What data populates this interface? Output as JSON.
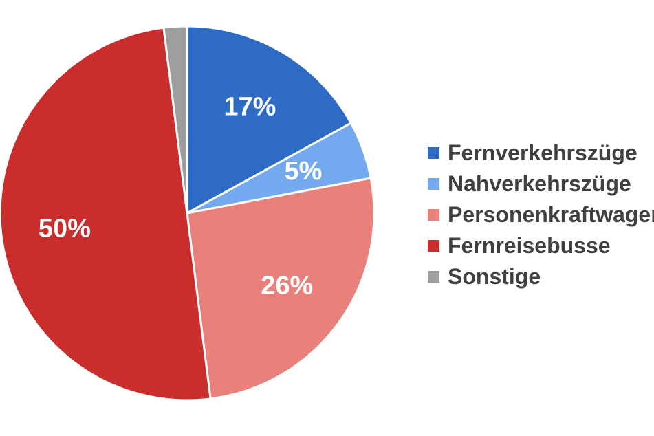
{
  "chart_data": {
    "type": "pie",
    "categories": [
      "Fernverkehrszüge",
      "Nahverkehrszüge",
      "Personenkraftwagen",
      "Fernreisebusse",
      "Sonstige"
    ],
    "values": [
      17,
      5,
      26,
      50,
      2
    ],
    "labels": [
      "17%",
      "5%",
      "26%",
      "50%",
      ""
    ],
    "colors": [
      "#2e6bc4",
      "#73a9ee",
      "#e8807c",
      "#c92e2d",
      "#9e9e9e"
    ],
    "title": "",
    "legend_position": "right"
  }
}
